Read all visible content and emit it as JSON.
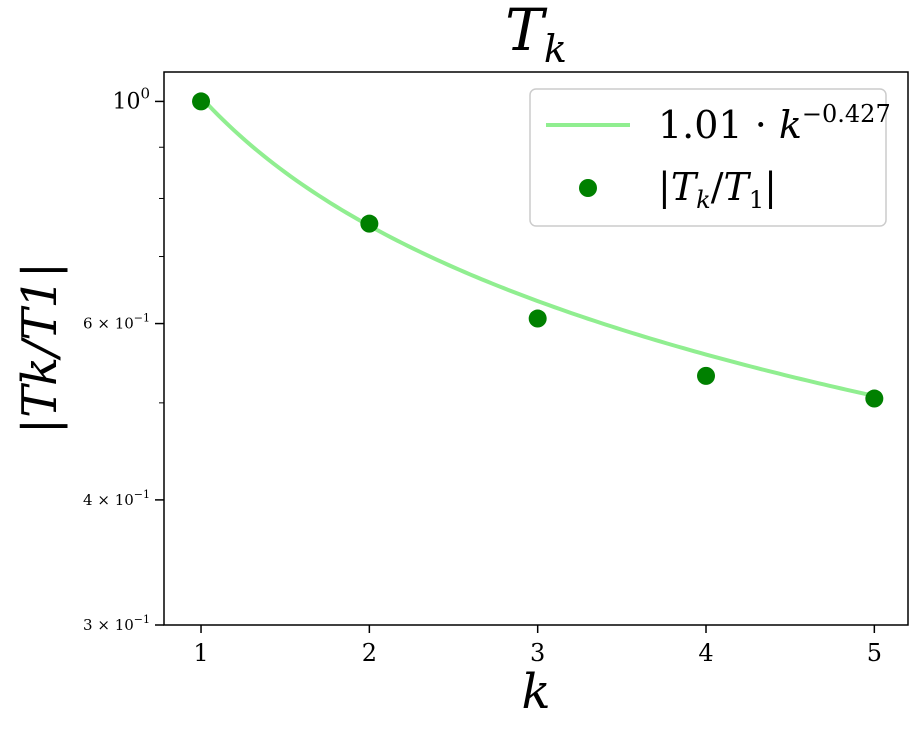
{
  "chart_data": {
    "type": "scatter",
    "title": "T",
    "title_sub": "k",
    "xlabel": "k",
    "ylabel": "|Tk/T1|",
    "x_scale": "linear",
    "y_scale": "log",
    "xlim": [
      0.78,
      5.2
    ],
    "ylim": [
      0.3,
      1.07
    ],
    "x_ticks": [
      1,
      2,
      3,
      4,
      5
    ],
    "x_tick_labels": [
      "1",
      "2",
      "3",
      "4",
      "5"
    ],
    "y_ticks": [
      {
        "value": 1.0,
        "base": "10",
        "exp": "0"
      },
      {
        "value": 0.6,
        "mantissa": "6 × ",
        "base": "10",
        "exp": "−1"
      },
      {
        "value": 0.4,
        "mantissa": "4 × ",
        "base": "10",
        "exp": "−1"
      },
      {
        "value": 0.3,
        "mantissa": "3 × ",
        "base": "10",
        "exp": "−1"
      }
    ],
    "y_minor_ticks": [
      0.5,
      0.7,
      0.8,
      0.9
    ],
    "grid": false,
    "legend_position": "top-right",
    "series": [
      {
        "name": "1.01 · k^−0.427",
        "kind": "line",
        "color": "#90ee90",
        "coef": 1.01,
        "exponent": -0.427,
        "x_range": [
          1,
          5
        ]
      },
      {
        "name": "|Tk/T1|",
        "kind": "scatter",
        "color": "#008000",
        "x": [
          1,
          2,
          3,
          4,
          5
        ],
        "y": [
          1.0,
          0.755,
          0.607,
          0.532,
          0.505
        ]
      }
    ],
    "legend": {
      "fit_label": {
        "coef": "1.01 · ",
        "var": "k",
        "exp": "−0.427"
      },
      "points_label": {
        "open": "|",
        "var1": "T",
        "sub1": "k",
        "slash": "/",
        "var2": "T",
        "sub2": "1",
        "close": "|"
      }
    }
  }
}
